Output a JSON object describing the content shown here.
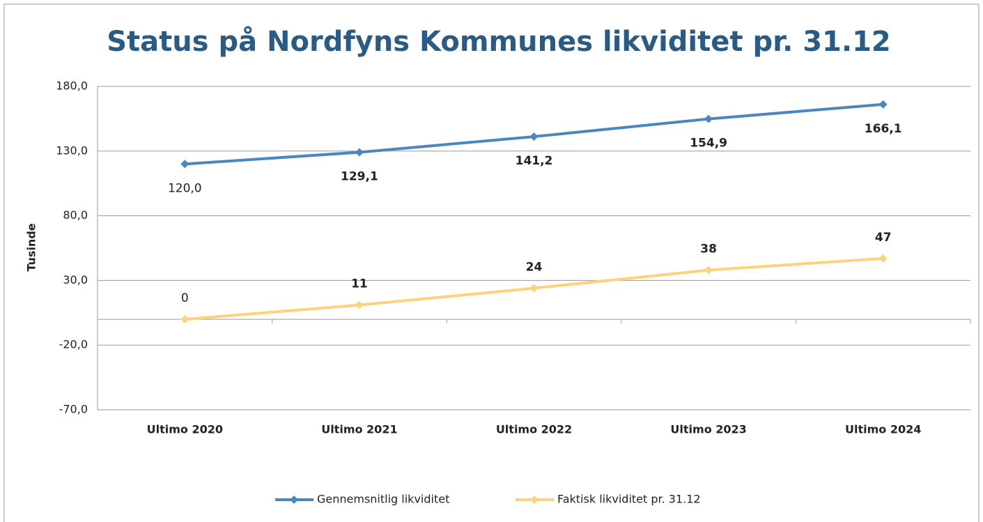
{
  "chart_data": {
    "type": "line",
    "title": "Status på Nordfyns Kommunes likviditet pr. 31.12",
    "y_label": "Tusinde",
    "categories": [
      "Ultimo 2020",
      "Ultimo 2021",
      "Ultimo 2022",
      "Ultimo 2023",
      "Ultimo 2024"
    ],
    "series": [
      {
        "name": "Gennemsnitlig likviditet",
        "color": "#4a86c0",
        "values": [
          120.0,
          129.1,
          141.2,
          154.9,
          166.1
        ],
        "value_labels": [
          "120,0",
          "129,1",
          "141,2",
          "154,9",
          "166,1"
        ]
      },
      {
        "name": "Faktisk likviditet pr. 31.12",
        "color": "#fdd27a",
        "values": [
          0,
          11,
          24,
          38,
          47
        ]
      }
    ],
    "ylim": [
      -70,
      180
    ],
    "yticks": [
      {
        "value": -70,
        "label": "-70,0"
      },
      {
        "value": -20,
        "label": "-20,0"
      },
      {
        "value": 30,
        "label": "30,0"
      },
      {
        "value": 80,
        "label": "80,0"
      },
      {
        "value": 130,
        "label": "130,0"
      },
      {
        "value": 180,
        "label": "180,0"
      }
    ],
    "grid": true
  }
}
